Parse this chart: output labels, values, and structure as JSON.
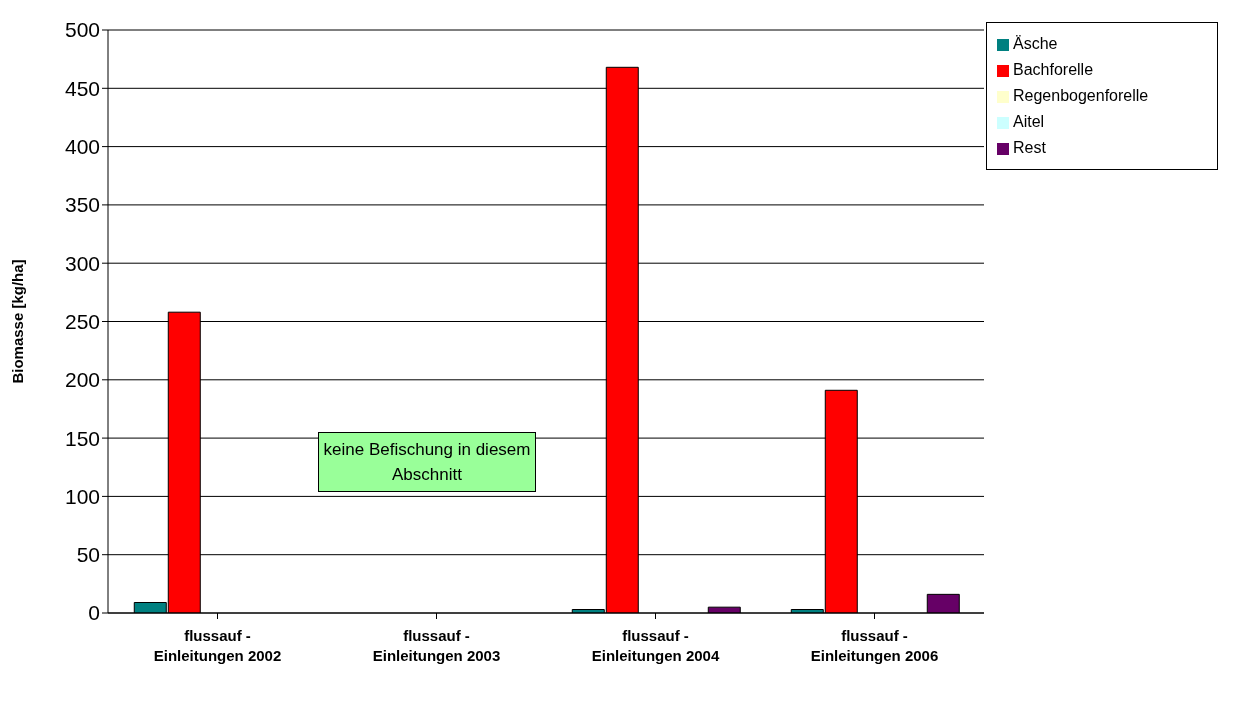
{
  "chart_data": {
    "type": "bar",
    "ylabel": "Biomasse [kg/ha]",
    "categories": [
      "flussauf - Einleitungen 2002",
      "flussauf - Einleitungen 2003",
      "flussauf - Einleitungen 2004",
      "flussauf - Einleitungen 2006"
    ],
    "series": [
      {
        "name": "Äsche",
        "color": "#008080",
        "values": [
          9,
          0,
          3,
          3
        ]
      },
      {
        "name": "Bachforelle",
        "color": "#ff0000",
        "values": [
          258,
          0,
          468,
          191
        ]
      },
      {
        "name": "Regenbogenforelle",
        "color": "#ffffcc",
        "values": [
          0,
          0,
          0,
          0
        ]
      },
      {
        "name": "Aitel",
        "color": "#ccffff",
        "values": [
          0,
          0,
          0,
          0
        ]
      },
      {
        "name": "Rest",
        "color": "#660066",
        "values": [
          0,
          0,
          5,
          16
        ]
      }
    ],
    "ylim": [
      0,
      500
    ],
    "yticks": [
      0,
      50,
      100,
      150,
      200,
      250,
      300,
      350,
      400,
      450,
      500
    ],
    "grid": "y",
    "legend": "top right",
    "annotations": [
      "keine Befischung in diesem Abschnitt"
    ]
  }
}
